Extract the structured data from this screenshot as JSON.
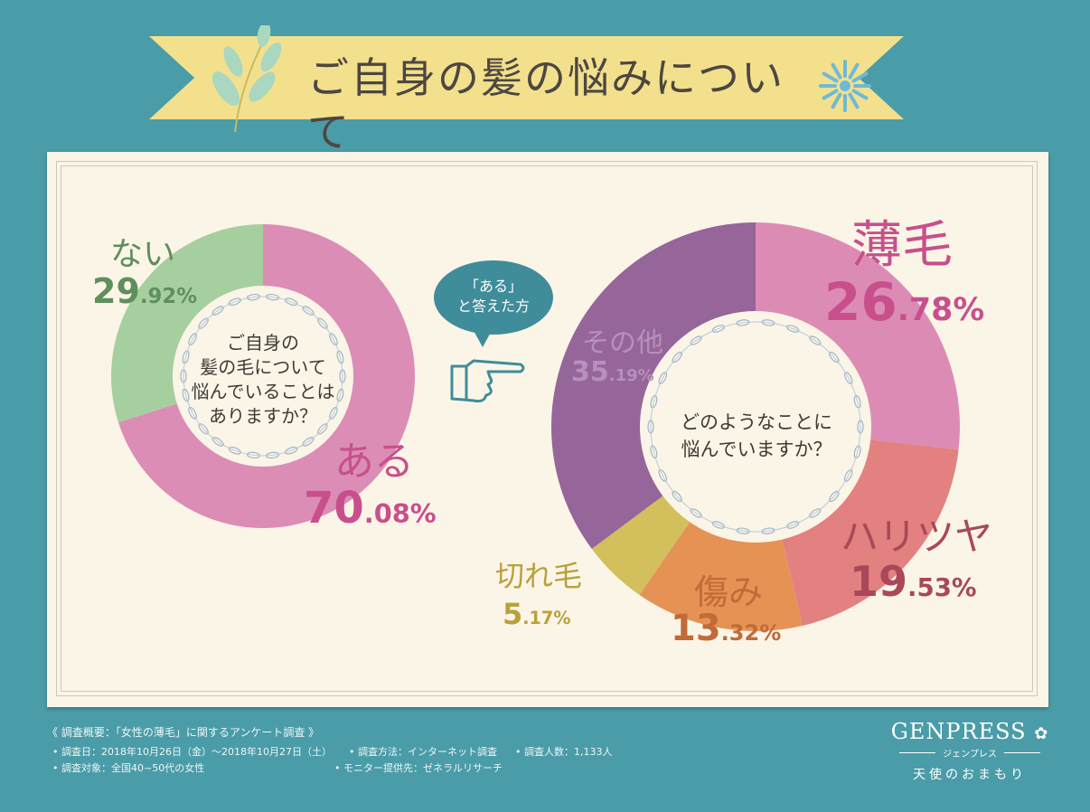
{
  "title": "ご自身の髪の悩みについて",
  "chart_data": [
    {
      "type": "pie",
      "center_text": [
        "ご自身の",
        "髪の毛について",
        "悩んでいることは",
        "ありますか？"
      ],
      "slices": [
        {
          "label": "ある",
          "value": 70.08,
          "pct_int": "70",
          "pct_dec": ".08%",
          "color": "#db8db6",
          "text_color": "#c84f8c"
        },
        {
          "label": "ない",
          "value": 29.92,
          "pct_int": "29",
          "pct_dec": ".92%",
          "color": "#a6cfa0",
          "text_color": "#5e8f5c"
        }
      ]
    },
    {
      "type": "pie",
      "filter_label": [
        "「ある」",
        "と答えた方"
      ],
      "center_text": [
        "どのようなことに",
        "悩んでいますか？"
      ],
      "slices": [
        {
          "label": "薄毛",
          "value": 26.78,
          "pct_int": "26",
          "pct_dec": ".78%",
          "color": "#dc8cb4",
          "text_color": "#c84f8c"
        },
        {
          "label": "ハリツヤ",
          "value": 19.53,
          "pct_int": "19",
          "pct_dec": ".53%",
          "color": "#e38180",
          "text_color": "#a94858"
        },
        {
          "label": "傷み",
          "value": 13.32,
          "pct_int": "13",
          "pct_dec": ".32%",
          "color": "#e69255",
          "text_color": "#c26a38"
        },
        {
          "label": "切れ毛",
          "value": 5.17,
          "pct_int": "5",
          "pct_dec": ".17%",
          "color": "#d3bf5c",
          "text_color": "#b9a13a"
        },
        {
          "label": "その他",
          "value": 35.19,
          "pct_int": "35",
          "pct_dec": ".19%",
          "color": "#966599",
          "text_color": "#b691bd"
        }
      ]
    }
  ],
  "footer": {
    "heading": "《 調査概要：「女性の薄毛」に関するアンケート調査 》",
    "line1a": "• 調査日：2018年10月26日（金）〜2018年10月27日（土）",
    "line1b": "• 調査方法：インターネット調査",
    "line1c": "• 調査人数：1,133人",
    "line2a": "• 調査対象：全国40~50代の女性",
    "line2b": "• モニター提供先：ゼネラルリサーチ"
  },
  "brand": {
    "name": "GENPRESS",
    "kana": "ジェンプレス",
    "tagline": "天使のおまもり"
  },
  "colors": {
    "background": "#4a9ca8",
    "banner": "#f3e08d",
    "panel": "#fbf5e7"
  }
}
